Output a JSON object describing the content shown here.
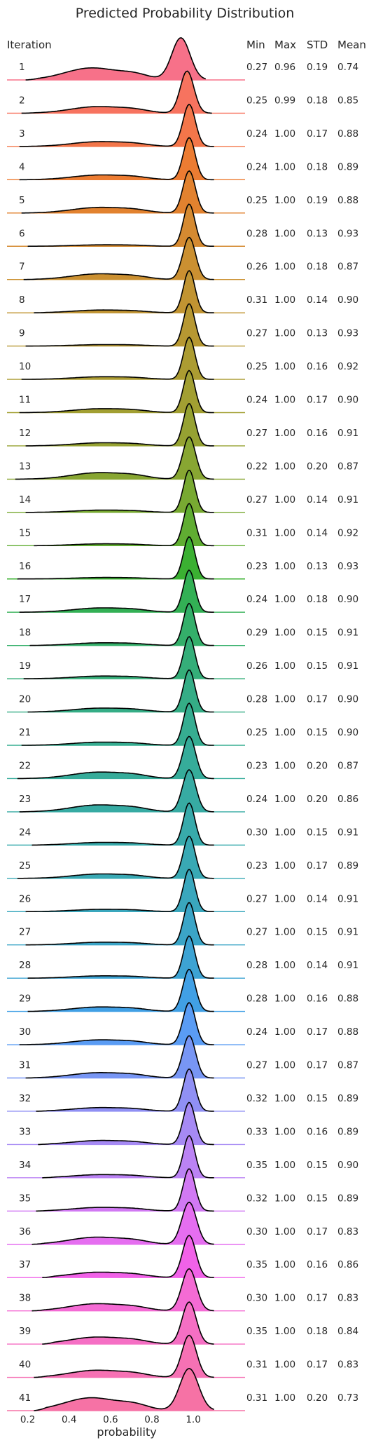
{
  "chart_data": {
    "type": "ridgeline",
    "title": "Predicted Probability Distribution",
    "row_header": "Iteration",
    "stat_headers": [
      "Min",
      "Max",
      "STD",
      "Mean"
    ],
    "xlabel": "probability",
    "xlim": [
      0.1,
      1.25
    ],
    "xticks": [
      0.2,
      0.4,
      0.6,
      0.8,
      1.0
    ],
    "xtick_labels": [
      "0.2",
      "0.4",
      "0.6",
      "0.8",
      "1.0"
    ],
    "grid": false,
    "rows": [
      {
        "iteration": "1",
        "min": "0.27",
        "max": "0.96",
        "std": "0.19",
        "mean": "0.74",
        "color": "#f77189"
      },
      {
        "iteration": "2",
        "min": "0.25",
        "max": "0.99",
        "std": "0.18",
        "mean": "0.85",
        "color": "#f7735f"
      },
      {
        "iteration": "3",
        "min": "0.24",
        "max": "1.00",
        "std": "0.17",
        "mean": "0.88",
        "color": "#f3764a"
      },
      {
        "iteration": "4",
        "min": "0.24",
        "max": "1.00",
        "std": "0.18",
        "mean": "0.89",
        "color": "#ec7c32"
      },
      {
        "iteration": "5",
        "min": "0.25",
        "max": "1.00",
        "std": "0.19",
        "mean": "0.88",
        "color": "#e2822f"
      },
      {
        "iteration": "6",
        "min": "0.28",
        "max": "1.00",
        "std": "0.13",
        "mean": "0.93",
        "color": "#d58a31"
      },
      {
        "iteration": "7",
        "min": "0.26",
        "max": "1.00",
        "std": "0.18",
        "mean": "0.87",
        "color": "#cb9031"
      },
      {
        "iteration": "8",
        "min": "0.31",
        "max": "1.00",
        "std": "0.14",
        "mean": "0.90",
        "color": "#c19432"
      },
      {
        "iteration": "9",
        "min": "0.27",
        "max": "1.00",
        "std": "0.13",
        "mean": "0.93",
        "color": "#b79832"
      },
      {
        "iteration": "10",
        "min": "0.25",
        "max": "1.00",
        "std": "0.16",
        "mean": "0.92",
        "color": "#ac9c32"
      },
      {
        "iteration": "11",
        "min": "0.24",
        "max": "1.00",
        "std": "0.17",
        "mean": "0.90",
        "color": "#a29f32"
      },
      {
        "iteration": "12",
        "min": "0.27",
        "max": "1.00",
        "std": "0.16",
        "mean": "0.91",
        "color": "#96a232"
      },
      {
        "iteration": "13",
        "min": "0.22",
        "max": "1.00",
        "std": "0.20",
        "mean": "0.87",
        "color": "#88a632"
      },
      {
        "iteration": "14",
        "min": "0.27",
        "max": "1.00",
        "std": "0.14",
        "mean": "0.91",
        "color": "#78a932"
      },
      {
        "iteration": "15",
        "min": "0.31",
        "max": "1.00",
        "std": "0.14",
        "mean": "0.92",
        "color": "#60ad32"
      },
      {
        "iteration": "16",
        "min": "0.23",
        "max": "1.00",
        "std": "0.13",
        "mean": "0.93",
        "color": "#3bb032"
      },
      {
        "iteration": "17",
        "min": "0.24",
        "max": "1.00",
        "std": "0.18",
        "mean": "0.90",
        "color": "#33b055"
      },
      {
        "iteration": "18",
        "min": "0.29",
        "max": "1.00",
        "std": "0.15",
        "mean": "0.91",
        "color": "#34af6a"
      },
      {
        "iteration": "19",
        "min": "0.26",
        "max": "1.00",
        "std": "0.15",
        "mean": "0.91",
        "color": "#35ae79"
      },
      {
        "iteration": "20",
        "min": "0.28",
        "max": "1.00",
        "std": "0.17",
        "mean": "0.90",
        "color": "#35ad86"
      },
      {
        "iteration": "21",
        "min": "0.25",
        "max": "1.00",
        "std": "0.15",
        "mean": "0.90",
        "color": "#36ad91"
      },
      {
        "iteration": "22",
        "min": "0.23",
        "max": "1.00",
        "std": "0.20",
        "mean": "0.87",
        "color": "#36ac9a"
      },
      {
        "iteration": "23",
        "min": "0.24",
        "max": "1.00",
        "std": "0.20",
        "mean": "0.86",
        "color": "#37aba3"
      },
      {
        "iteration": "24",
        "min": "0.30",
        "max": "1.00",
        "std": "0.15",
        "mean": "0.91",
        "color": "#38aaab"
      },
      {
        "iteration": "25",
        "min": "0.23",
        "max": "1.00",
        "std": "0.17",
        "mean": "0.89",
        "color": "#39a9b4"
      },
      {
        "iteration": "26",
        "min": "0.27",
        "max": "1.00",
        "std": "0.14",
        "mean": "0.91",
        "color": "#3aa7bd"
      },
      {
        "iteration": "27",
        "min": "0.27",
        "max": "1.00",
        "std": "0.15",
        "mean": "0.91",
        "color": "#3ba5c7"
      },
      {
        "iteration": "28",
        "min": "0.28",
        "max": "1.00",
        "std": "0.14",
        "mean": "0.91",
        "color": "#3da3d3"
      },
      {
        "iteration": "29",
        "min": "0.28",
        "max": "1.00",
        "std": "0.16",
        "mean": "0.88",
        "color": "#41a0e5"
      },
      {
        "iteration": "30",
        "min": "0.24",
        "max": "1.00",
        "std": "0.17",
        "mean": "0.88",
        "color": "#5a9cf4"
      },
      {
        "iteration": "31",
        "min": "0.27",
        "max": "1.00",
        "std": "0.17",
        "mean": "0.87",
        "color": "#7896f4"
      },
      {
        "iteration": "32",
        "min": "0.32",
        "max": "1.00",
        "std": "0.15",
        "mean": "0.89",
        "color": "#9090f4"
      },
      {
        "iteration": "33",
        "min": "0.33",
        "max": "1.00",
        "std": "0.16",
        "mean": "0.89",
        "color": "#a68af4"
      },
      {
        "iteration": "34",
        "min": "0.35",
        "max": "1.00",
        "std": "0.15",
        "mean": "0.90",
        "color": "#bb83f4"
      },
      {
        "iteration": "35",
        "min": "0.32",
        "max": "1.00",
        "std": "0.15",
        "mean": "0.89",
        "color": "#d179f3"
      },
      {
        "iteration": "36",
        "min": "0.30",
        "max": "1.00",
        "std": "0.17",
        "mean": "0.83",
        "color": "#e56ef0"
      },
      {
        "iteration": "37",
        "min": "0.35",
        "max": "1.00",
        "std": "0.16",
        "mean": "0.86",
        "color": "#f162e8"
      },
      {
        "iteration": "38",
        "min": "0.30",
        "max": "1.00",
        "std": "0.17",
        "mean": "0.83",
        "color": "#f46bd4"
      },
      {
        "iteration": "39",
        "min": "0.35",
        "max": "1.00",
        "std": "0.18",
        "mean": "0.84",
        "color": "#f56fc4"
      },
      {
        "iteration": "40",
        "min": "0.31",
        "max": "1.00",
        "std": "0.17",
        "mean": "0.83",
        "color": "#f671b4"
      },
      {
        "iteration": "41",
        "min": "0.31",
        "max": "1.00",
        "std": "0.20",
        "mean": "0.73",
        "color": "#f672a5"
      }
    ]
  }
}
